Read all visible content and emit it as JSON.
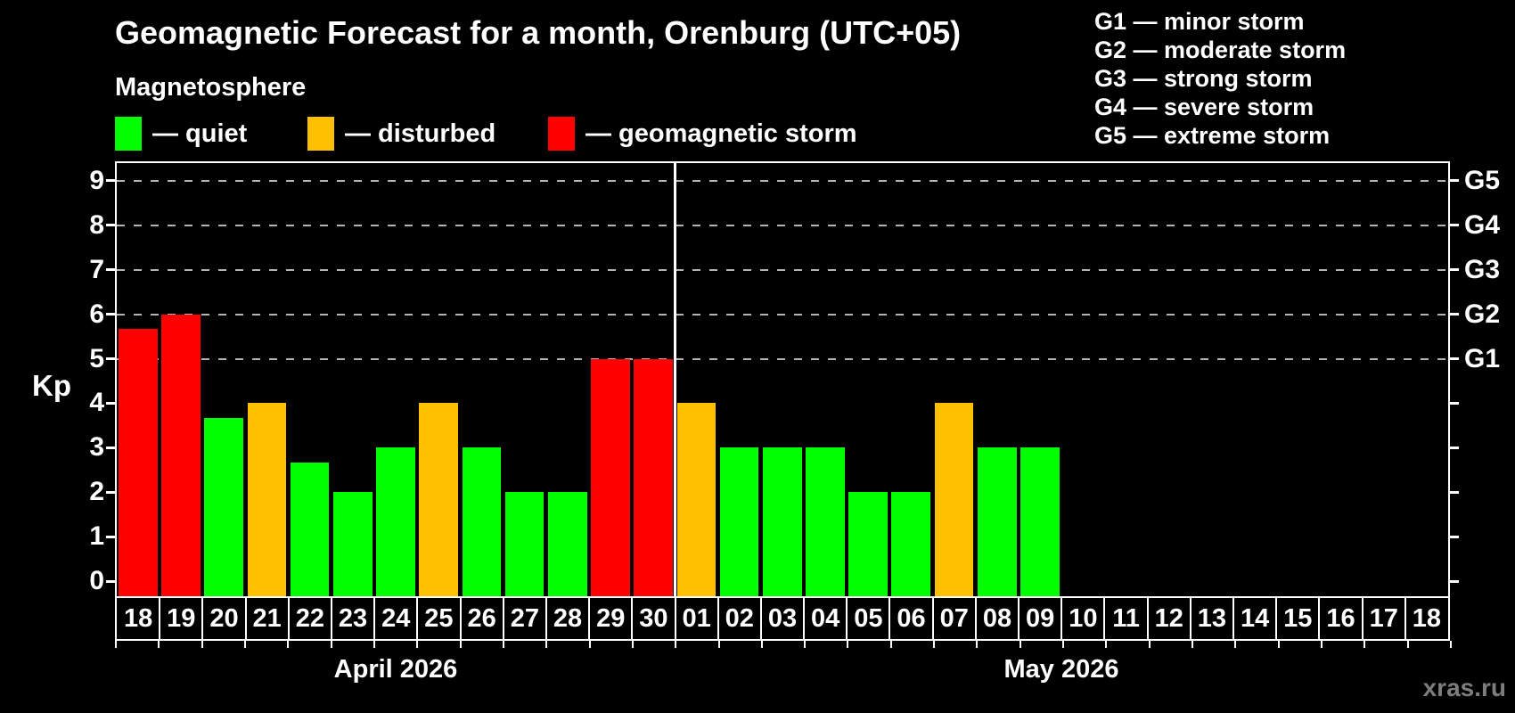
{
  "header": {
    "title": "Geomagnetic Forecast for a month, Orenburg (UTC+05)"
  },
  "legend": {
    "title": "Magnetosphere",
    "items": [
      {
        "name": "quiet",
        "label": "— quiet",
        "color": "#00ff00"
      },
      {
        "name": "disturbed",
        "label": "— disturbed",
        "color": "#ffc000"
      },
      {
        "name": "storm",
        "label": "— geomagnetic storm",
        "color": "#ff0000"
      }
    ]
  },
  "storm_scale": [
    "G1 — minor storm",
    "G2 — moderate storm",
    "G3 — strong storm",
    "G4 — severe storm",
    "G5 — extreme storm"
  ],
  "watermark": "xras.ru",
  "colors": {
    "quiet": "#00ff00",
    "disturbed": "#ffc000",
    "storm": "#ff0000",
    "axis": "#ffffff",
    "gridline": "#b4b4b4",
    "background": "#000000",
    "watermark": "#7d7d7d"
  },
  "chart_data": {
    "type": "bar",
    "title": "Geomagnetic Forecast for a month, Orenburg (UTC+05)",
    "xlabel": "",
    "ylabel": "Kp",
    "ylim": [
      0,
      9
    ],
    "grid": "dashed horizontal at Kp 5-9 only",
    "y_ticks_left": [
      0,
      1,
      2,
      3,
      4,
      5,
      6,
      7,
      8,
      9
    ],
    "gridlines_at": [
      5,
      6,
      7,
      8,
      9
    ],
    "right_axis": [
      {
        "label": "G1",
        "kp": 5
      },
      {
        "label": "G2",
        "kp": 6
      },
      {
        "label": "G3",
        "kp": 7
      },
      {
        "label": "G4",
        "kp": 8
      },
      {
        "label": "G5",
        "kp": 9
      }
    ],
    "months": [
      {
        "label": "April 2026",
        "days": [
          "18",
          "19",
          "20",
          "21",
          "22",
          "23",
          "24",
          "25",
          "26",
          "27",
          "28",
          "29",
          "30"
        ]
      },
      {
        "label": "May 2026",
        "days": [
          "01",
          "02",
          "03",
          "04",
          "05",
          "06",
          "07",
          "08",
          "09",
          "10",
          "11",
          "12",
          "13",
          "14",
          "15",
          "16",
          "17",
          "18"
        ]
      }
    ],
    "bars": [
      {
        "day": "18",
        "month": "April 2026",
        "kp": 5.67,
        "level": "storm"
      },
      {
        "day": "19",
        "month": "April 2026",
        "kp": 6,
        "level": "storm"
      },
      {
        "day": "20",
        "month": "April 2026",
        "kp": 3.67,
        "level": "quiet"
      },
      {
        "day": "21",
        "month": "April 2026",
        "kp": 4,
        "level": "disturbed"
      },
      {
        "day": "22",
        "month": "April 2026",
        "kp": 2.67,
        "level": "quiet"
      },
      {
        "day": "23",
        "month": "April 2026",
        "kp": 2,
        "level": "quiet"
      },
      {
        "day": "24",
        "month": "April 2026",
        "kp": 3,
        "level": "quiet"
      },
      {
        "day": "25",
        "month": "April 2026",
        "kp": 4,
        "level": "disturbed"
      },
      {
        "day": "26",
        "month": "April 2026",
        "kp": 3,
        "level": "quiet"
      },
      {
        "day": "27",
        "month": "April 2026",
        "kp": 2,
        "level": "quiet"
      },
      {
        "day": "28",
        "month": "April 2026",
        "kp": 2,
        "level": "quiet"
      },
      {
        "day": "29",
        "month": "April 2026",
        "kp": 5,
        "level": "storm"
      },
      {
        "day": "30",
        "month": "April 2026",
        "kp": 5,
        "level": "storm"
      },
      {
        "day": "01",
        "month": "May 2026",
        "kp": 4,
        "level": "disturbed"
      },
      {
        "day": "02",
        "month": "May 2026",
        "kp": 3,
        "level": "quiet"
      },
      {
        "day": "03",
        "month": "May 2026",
        "kp": 3,
        "level": "quiet"
      },
      {
        "day": "04",
        "month": "May 2026",
        "kp": 3,
        "level": "quiet"
      },
      {
        "day": "05",
        "month": "May 2026",
        "kp": 2,
        "level": "quiet"
      },
      {
        "day": "06",
        "month": "May 2026",
        "kp": 2,
        "level": "quiet"
      },
      {
        "day": "07",
        "month": "May 2026",
        "kp": 4,
        "level": "disturbed"
      },
      {
        "day": "08",
        "month": "May 2026",
        "kp": 3,
        "level": "quiet"
      },
      {
        "day": "09",
        "month": "May 2026",
        "kp": 3,
        "level": "quiet"
      },
      {
        "day": "10",
        "month": "May 2026",
        "kp": null,
        "level": null
      },
      {
        "day": "11",
        "month": "May 2026",
        "kp": null,
        "level": null
      },
      {
        "day": "12",
        "month": "May 2026",
        "kp": null,
        "level": null
      },
      {
        "day": "13",
        "month": "May 2026",
        "kp": null,
        "level": null
      },
      {
        "day": "14",
        "month": "May 2026",
        "kp": null,
        "level": null
      },
      {
        "day": "15",
        "month": "May 2026",
        "kp": null,
        "level": null
      },
      {
        "day": "16",
        "month": "May 2026",
        "kp": null,
        "level": null
      },
      {
        "day": "17",
        "month": "May 2026",
        "kp": null,
        "level": null
      },
      {
        "day": "18",
        "month": "May 2026",
        "kp": null,
        "level": null
      }
    ]
  }
}
